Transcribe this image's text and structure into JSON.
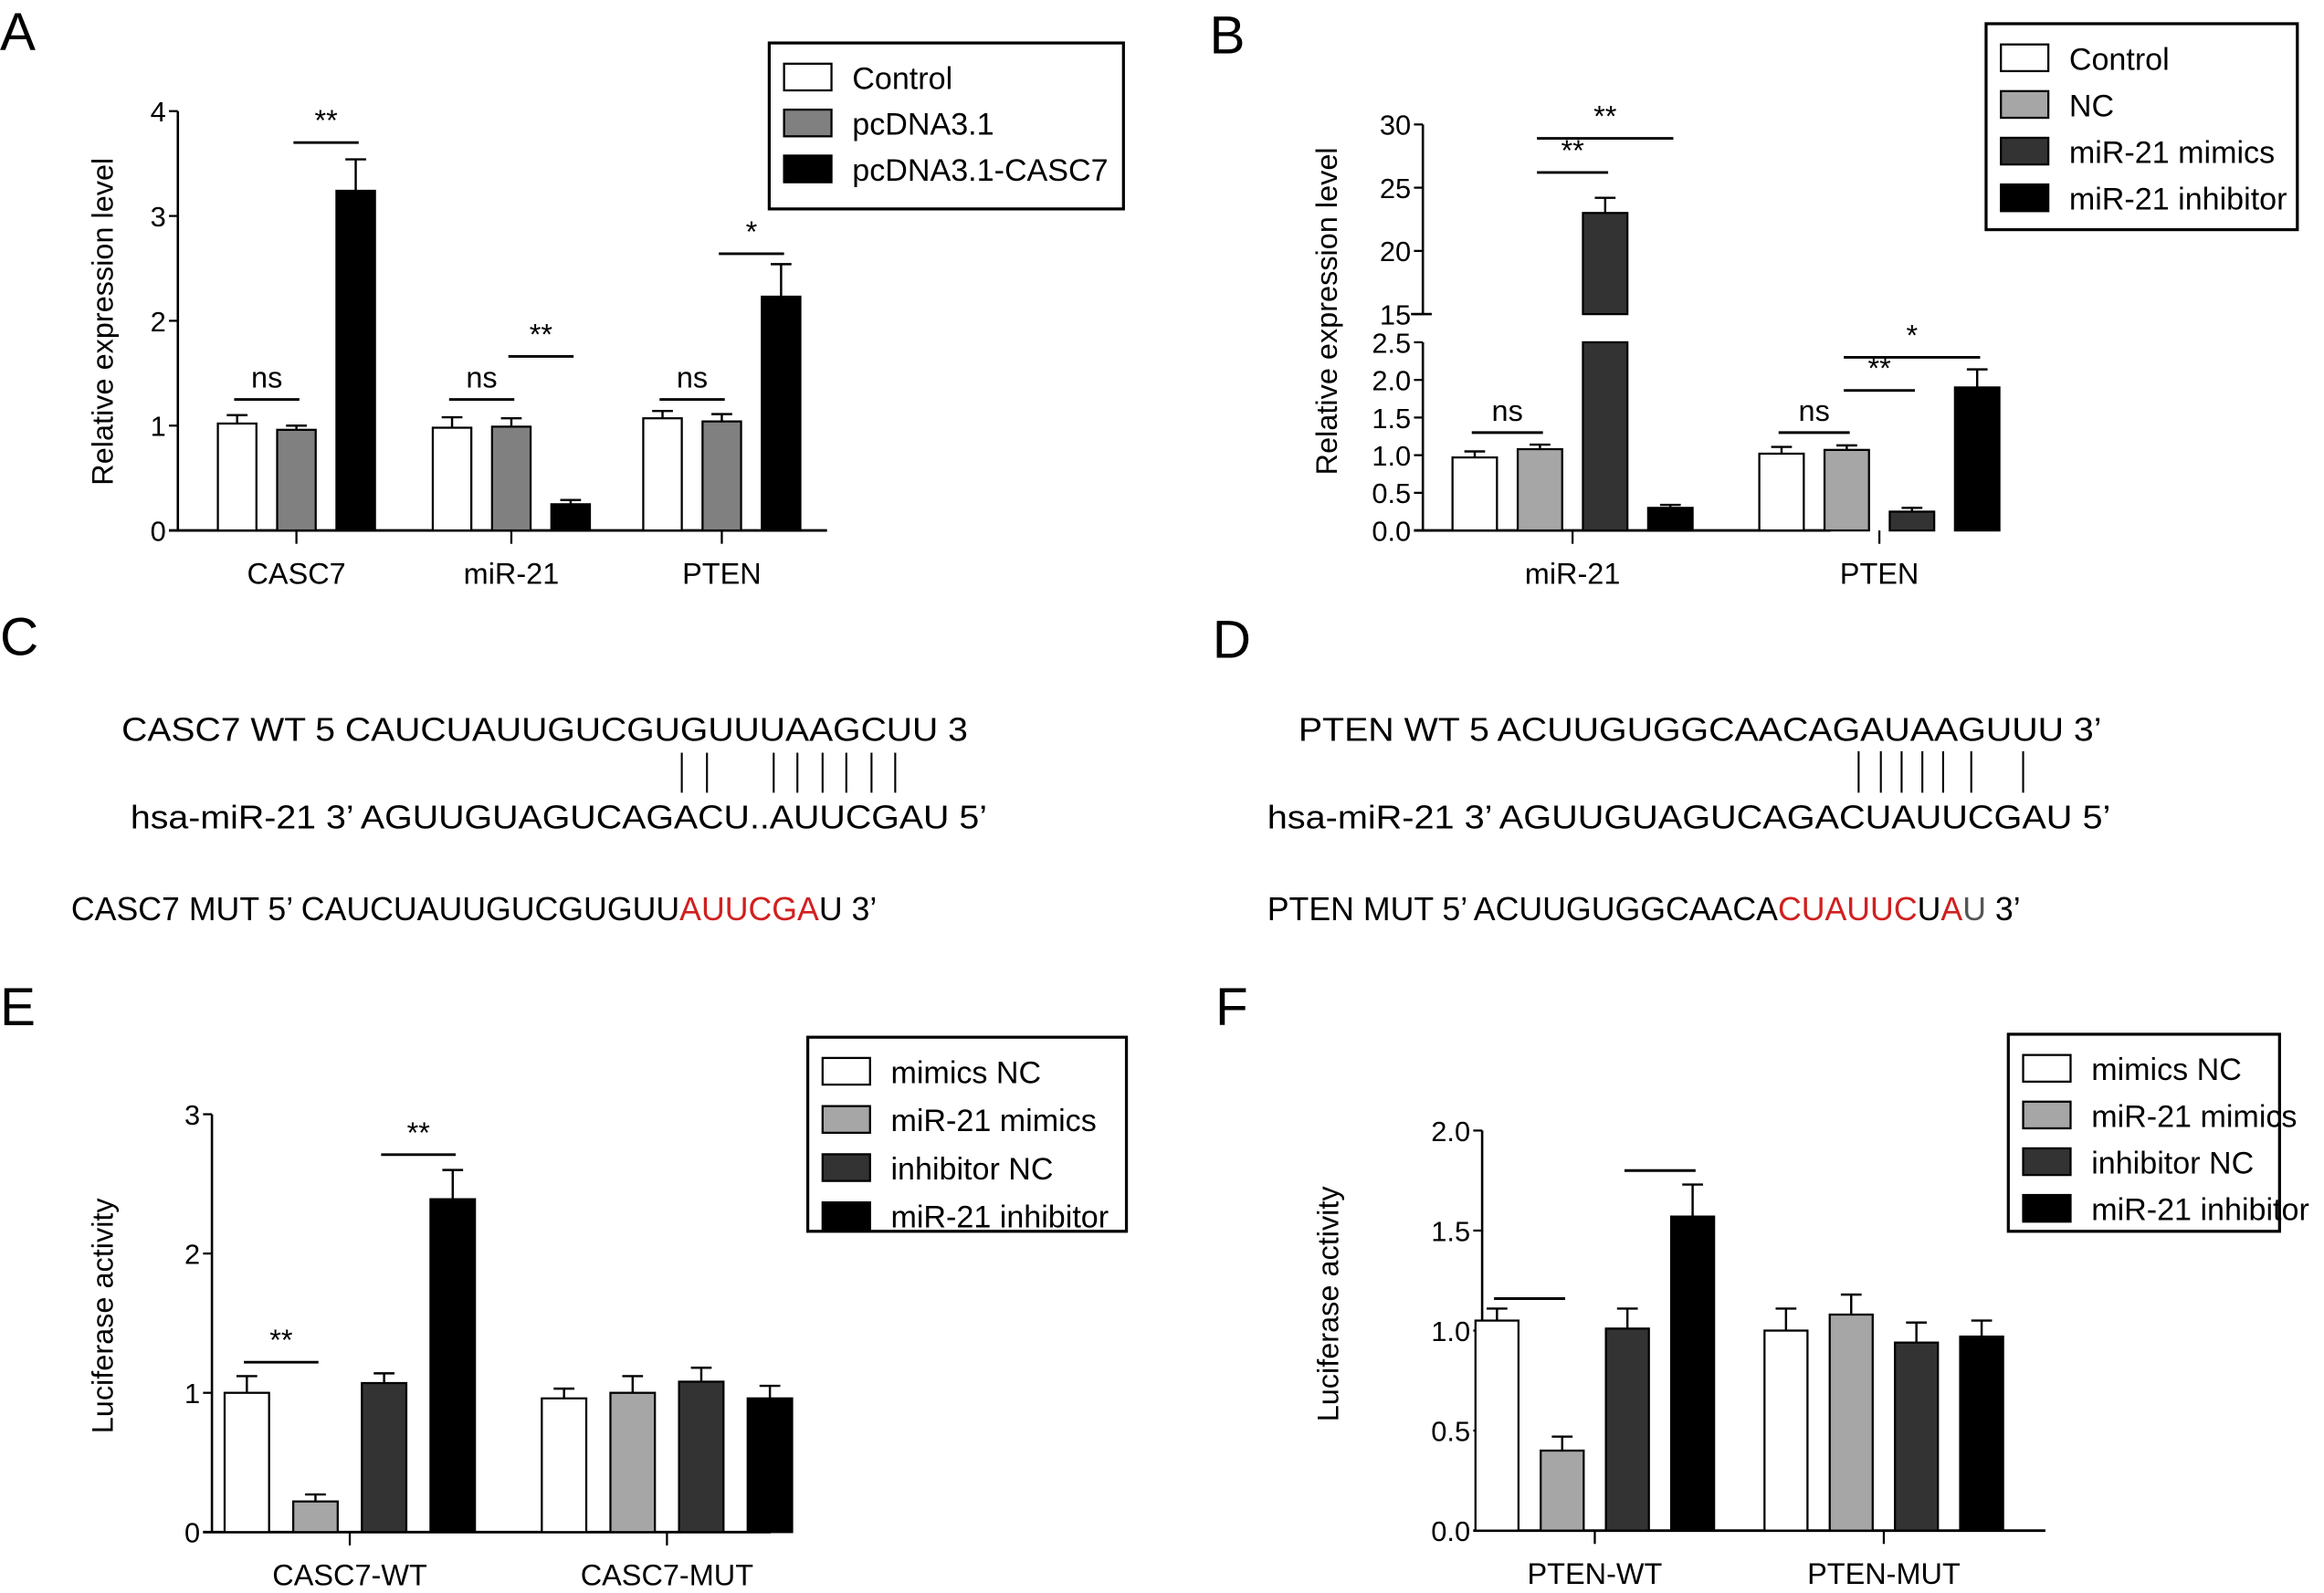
{
  "panel_labels": [
    "A",
    "B",
    "C",
    "D",
    "E",
    "F"
  ],
  "colors": {
    "white": "#ffffff",
    "gray_mid": "#808080",
    "gray_light": "#a6a6a6",
    "gray_dark": "#333333",
    "black": "#000000",
    "red": "#d0201f",
    "gray_text": "#555555"
  },
  "chart_data": [
    {
      "id": "A",
      "type": "bar",
      "ylabel": "Relative expression level",
      "categories": [
        "CASC7",
        "miR-21",
        "PTEN"
      ],
      "yticks": [
        "0",
        "1",
        "2",
        "3",
        "4"
      ],
      "ylim": [
        0,
        4
      ],
      "series": [
        {
          "name": "Control",
          "color": "#ffffff",
          "values": [
            1.02,
            0.98,
            1.07
          ],
          "errors": [
            0.08,
            0.1,
            0.07
          ]
        },
        {
          "name": "pcDNA3.1",
          "color": "#808080",
          "values": [
            0.96,
            0.99,
            1.04
          ],
          "errors": [
            0.04,
            0.08,
            0.07
          ]
        },
        {
          "name": "pcDNA3.1-CASC7",
          "color": "#000000",
          "values": [
            3.24,
            0.25,
            2.23
          ],
          "errors": [
            0.3,
            0.04,
            0.31
          ]
        }
      ],
      "significance": [
        {
          "group": 0,
          "from": 0,
          "to": 1,
          "y": 1.25,
          "label": "ns"
        },
        {
          "group": 0,
          "from": 1,
          "to": 2,
          "y": 3.7,
          "label": "**"
        },
        {
          "group": 1,
          "from": 0,
          "to": 1,
          "y": 1.25,
          "label": "ns"
        },
        {
          "group": 1,
          "from": 1,
          "to": 2,
          "y": 1.66,
          "label": "**"
        },
        {
          "group": 2,
          "from": 0,
          "to": 1,
          "y": 1.25,
          "label": "ns"
        },
        {
          "group": 2,
          "from": 1,
          "to": 2,
          "y": 2.64,
          "label": "*"
        }
      ],
      "legend": "top-right"
    },
    {
      "id": "B",
      "type": "bar",
      "ylabel": "Relative expression level",
      "categories": [
        "miR-21",
        "PTEN"
      ],
      "yticks": [
        "0.0",
        "0.5",
        "1.0",
        "1.5",
        "2.0",
        "2.5",
        "15",
        "20",
        "25",
        "30"
      ],
      "ylim": [
        0,
        30
      ],
      "axis_break": [
        2.5,
        15
      ],
      "series": [
        {
          "name": "Control",
          "color": "#ffffff",
          "values": [
            0.97,
            1.02
          ],
          "errors": [
            0.08,
            0.09
          ]
        },
        {
          "name": "NC",
          "color": "#a6a6a6",
          "values": [
            1.08,
            1.07
          ],
          "errors": [
            0.06,
            0.06
          ]
        },
        {
          "name": "miR-21 mimics",
          "color": "#333333",
          "values": [
            23.0,
            0.25
          ],
          "errors": [
            1.2,
            0.05
          ]
        },
        {
          "name": "miR-21 inhibitor",
          "color": "#000000",
          "values": [
            0.3,
            1.9
          ],
          "errors": [
            0.04,
            0.24
          ]
        }
      ],
      "significance": [
        {
          "group": 0,
          "from": 0,
          "to": 1,
          "y": 1.3,
          "label": "ns"
        },
        {
          "group": 0,
          "from": 1,
          "to": 2,
          "y": 26.2,
          "label": "**"
        },
        {
          "group": 0,
          "from": 1,
          "to": 3,
          "y": 28.9,
          "label": "**"
        },
        {
          "group": 1,
          "from": 0,
          "to": 1,
          "y": 1.3,
          "label": "ns"
        },
        {
          "group": 1,
          "from": 1,
          "to": 2,
          "y": 1.86,
          "label": "**"
        },
        {
          "group": 1,
          "from": 1,
          "to": 3,
          "y": 2.3,
          "label": "*"
        }
      ],
      "legend": "top-right"
    },
    {
      "id": "E",
      "type": "bar",
      "ylabel": "Luciferase activity",
      "categories": [
        "CASC7-WT",
        "CASC7-MUT"
      ],
      "yticks": [
        "0",
        "1",
        "2",
        "3"
      ],
      "ylim": [
        0,
        3
      ],
      "series": [
        {
          "name": "mimics NC",
          "color": "#ffffff",
          "values": [
            1.0,
            0.96
          ],
          "errors": [
            0.12,
            0.07
          ]
        },
        {
          "name": "miR-21 mimics",
          "color": "#a6a6a6",
          "values": [
            0.22,
            1.0
          ],
          "errors": [
            0.05,
            0.12
          ]
        },
        {
          "name": "inhibitor NC",
          "color": "#333333",
          "values": [
            1.07,
            1.08
          ],
          "errors": [
            0.07,
            0.1
          ]
        },
        {
          "name": "miR-21 inhibitor",
          "color": "#000000",
          "values": [
            2.39,
            0.96
          ],
          "errors": [
            0.21,
            0.09
          ]
        }
      ],
      "significance": [
        {
          "group": 0,
          "from": 0,
          "to": 1,
          "y": 1.22,
          "label": "**"
        },
        {
          "group": 0,
          "from": 2,
          "to": 3,
          "y": 2.71,
          "label": "**"
        }
      ],
      "legend": "top-right"
    },
    {
      "id": "F",
      "type": "bar",
      "ylabel": "Luciferase activity",
      "categories": [
        "PTEN-WT",
        "PTEN-MUT"
      ],
      "yticks": [
        "0.0",
        "0.5",
        "1.0",
        "1.5",
        "2.0"
      ],
      "ylim": [
        0,
        2
      ],
      "series": [
        {
          "name": "mimics NC",
          "color": "#ffffff",
          "values": [
            1.05,
            1.0
          ],
          "errors": [
            0.06,
            0.11
          ]
        },
        {
          "name": "miR-21 mimics",
          "color": "#a6a6a6",
          "values": [
            0.4,
            1.08
          ],
          "errors": [
            0.07,
            0.1
          ]
        },
        {
          "name": "inhibitor NC",
          "color": "#333333",
          "values": [
            1.01,
            0.94
          ],
          "errors": [
            0.1,
            0.1
          ]
        },
        {
          "name": "miR-21 inhibitor",
          "color": "#000000",
          "values": [
            1.57,
            0.97
          ],
          "errors": [
            0.16,
            0.08
          ]
        }
      ],
      "significance": [
        {
          "group": 0,
          "from": 0,
          "to": 1,
          "y": 1.16,
          "label": ""
        },
        {
          "group": 0,
          "from": 2,
          "to": 3,
          "y": 1.8,
          "label": ""
        }
      ],
      "legend": "top-right"
    }
  ],
  "sequences": {
    "C": {
      "wt": "CASC7 WT 5 CAUCUAUUGUCGUGUUUAAGCUU 3",
      "mirna": "hsa-miR-21  3’ AGUUGUAGUCAGACU..AUUCGAU 5’",
      "mut_prefix": "CASC7 MUT  5’  CAUCUAUUGUCGUGUU",
      "mut_red": "AUUCGA",
      "mut_suffix": "U 3’"
    },
    "D": {
      "wt": "PTEN WT 5 ACUUGUGGCAACAGAUAAGUUU 3’",
      "mirna": "hsa-miR-21  3’ AGUUGUAGUCAGACUAUUCGAU 5’",
      "mut_prefix": "PTEN MUT  5’  ACUUGUGGCAACA",
      "mut_red": "CUAUUC",
      "mut_mid": "U",
      "mut_red2": "A",
      "mut_gray": "U",
      "mut_suffix": " 3’"
    }
  }
}
